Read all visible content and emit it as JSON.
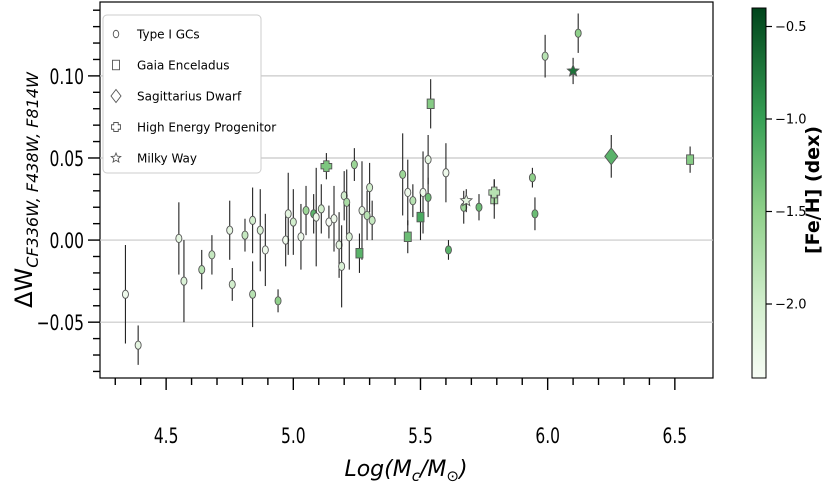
{
  "chart_data": {
    "type": "scatter",
    "xlabel": "Log(M_c/M_⊙)",
    "ylabel": "ΔW_CF336W, F438W, F814W",
    "xlim": [
      4.24,
      6.65
    ],
    "ylim": [
      -0.084,
      0.145
    ],
    "x_ticks": [
      4.5,
      5.0,
      5.5,
      6.0,
      6.5
    ],
    "x_tick_labels": [
      "4.5",
      "5.0",
      "5.5",
      "6.0",
      "6.5"
    ],
    "y_ticks": [
      -0.05,
      0.0,
      0.05,
      0.1
    ],
    "y_tick_labels": [
      "−0.05",
      "0.00",
      "0.05",
      "0.10"
    ],
    "grid": true,
    "legend_position": "top-left",
    "colorbar": {
      "label": "[Fe/H] (dex)",
      "range": [
        -2.4,
        -0.4
      ],
      "ticks": [
        -2.0,
        -1.5,
        -1.0,
        -0.5
      ],
      "tick_labels": [
        "−2.0",
        "−1.5",
        "−1.0",
        "−0.5"
      ],
      "color_low": "#f7fcf5",
      "color_high": "#00441b"
    },
    "series": [
      {
        "name": "Type I GCs",
        "marker": "circle",
        "points": [
          {
            "x": 4.34,
            "y": -0.033,
            "err": 0.03,
            "feh": -2.3
          },
          {
            "x": 4.39,
            "y": -0.064,
            "err": 0.012,
            "feh": -2.2
          },
          {
            "x": 4.55,
            "y": 0.001,
            "err": 0.022,
            "feh": -2.2
          },
          {
            "x": 4.57,
            "y": -0.025,
            "err": 0.025,
            "feh": -2.1
          },
          {
            "x": 4.64,
            "y": -0.018,
            "err": 0.012,
            "feh": -1.8
          },
          {
            "x": 4.68,
            "y": -0.009,
            "err": 0.012,
            "feh": -1.9
          },
          {
            "x": 4.75,
            "y": 0.006,
            "err": 0.018,
            "feh": -2.2
          },
          {
            "x": 4.76,
            "y": -0.027,
            "err": 0.01,
            "feh": -2.0
          },
          {
            "x": 4.81,
            "y": 0.003,
            "err": 0.01,
            "feh": -1.9
          },
          {
            "x": 4.84,
            "y": -0.033,
            "err": 0.02,
            "feh": -1.8
          },
          {
            "x": 4.84,
            "y": 0.012,
            "err": 0.02,
            "feh": -2.0
          },
          {
            "x": 4.87,
            "y": 0.006,
            "err": 0.025,
            "feh": -2.1
          },
          {
            "x": 4.89,
            "y": -0.006,
            "err": 0.022,
            "feh": -2.3
          },
          {
            "x": 4.94,
            "y": -0.037,
            "err": 0.007,
            "feh": -1.5
          },
          {
            "x": 4.97,
            "y": 0.0,
            "err": 0.016,
            "feh": -2.3
          },
          {
            "x": 4.98,
            "y": 0.016,
            "err": 0.025,
            "feh": -2.2
          },
          {
            "x": 5.0,
            "y": 0.011,
            "err": 0.02,
            "feh": -2.0
          },
          {
            "x": 5.03,
            "y": 0.002,
            "err": 0.02,
            "feh": -2.3
          },
          {
            "x": 5.05,
            "y": 0.018,
            "err": 0.015,
            "feh": -1.6
          },
          {
            "x": 5.08,
            "y": 0.016,
            "err": 0.012,
            "feh": -1.2
          },
          {
            "x": 5.09,
            "y": 0.014,
            "err": 0.03,
            "feh": -2.3
          },
          {
            "x": 5.11,
            "y": 0.019,
            "err": 0.015,
            "feh": -2.0
          },
          {
            "x": 5.14,
            "y": 0.011,
            "err": 0.01,
            "feh": -2.4
          },
          {
            "x": 5.16,
            "y": 0.013,
            "err": 0.02,
            "feh": -2.3
          },
          {
            "x": 5.18,
            "y": -0.003,
            "err": 0.02,
            "feh": -2.2
          },
          {
            "x": 5.19,
            "y": -0.016,
            "err": 0.025,
            "feh": -2.1
          },
          {
            "x": 5.2,
            "y": 0.027,
            "err": 0.015,
            "feh": -2.0
          },
          {
            "x": 5.21,
            "y": 0.023,
            "err": 0.02,
            "feh": -1.7
          },
          {
            "x": 5.22,
            "y": 0.002,
            "err": 0.02,
            "feh": -2.1
          },
          {
            "x": 5.24,
            "y": 0.046,
            "err": 0.01,
            "feh": -1.6
          },
          {
            "x": 5.27,
            "y": 0.018,
            "err": 0.03,
            "feh": -2.2
          },
          {
            "x": 5.29,
            "y": 0.015,
            "err": 0.015,
            "feh": -1.8
          },
          {
            "x": 5.3,
            "y": 0.032,
            "err": 0.015,
            "feh": -2.0
          },
          {
            "x": 5.31,
            "y": 0.012,
            "err": 0.012,
            "feh": -1.9
          },
          {
            "x": 5.43,
            "y": 0.04,
            "err": 0.025,
            "feh": -1.6
          },
          {
            "x": 5.45,
            "y": 0.029,
            "err": 0.02,
            "feh": -2.3
          },
          {
            "x": 5.47,
            "y": 0.024,
            "err": 0.01,
            "feh": -1.8
          },
          {
            "x": 5.51,
            "y": 0.029,
            "err": 0.025,
            "feh": -2.3
          },
          {
            "x": 5.53,
            "y": 0.049,
            "err": 0.015,
            "feh": -2.2
          },
          {
            "x": 5.53,
            "y": 0.026,
            "err": 0.012,
            "feh": -1.3
          },
          {
            "x": 5.6,
            "y": 0.041,
            "err": 0.018,
            "feh": -2.3
          },
          {
            "x": 5.61,
            "y": -0.006,
            "err": 0.006,
            "feh": -1.2
          },
          {
            "x": 5.67,
            "y": 0.02,
            "err": 0.01,
            "feh": -1.6
          },
          {
            "x": 5.73,
            "y": 0.02,
            "err": 0.008,
            "feh": -1.3
          },
          {
            "x": 5.94,
            "y": 0.038,
            "err": 0.006,
            "feh": -1.5
          },
          {
            "x": 5.95,
            "y": 0.016,
            "err": 0.01,
            "feh": -1.3
          },
          {
            "x": 5.99,
            "y": 0.112,
            "err": 0.013,
            "feh": -1.8
          },
          {
            "x": 6.12,
            "y": 0.126,
            "err": 0.012,
            "feh": -1.5
          }
        ]
      },
      {
        "name": "Gaia Enceladus",
        "marker": "square",
        "points": [
          {
            "x": 5.26,
            "y": -0.008,
            "err": 0.012,
            "feh": -1.2
          },
          {
            "x": 5.45,
            "y": 0.002,
            "err": 0.01,
            "feh": -1.3
          },
          {
            "x": 5.5,
            "y": 0.014,
            "err": 0.014,
            "feh": -1.1
          },
          {
            "x": 5.54,
            "y": 0.083,
            "err": 0.015,
            "feh": -1.45
          },
          {
            "x": 5.79,
            "y": 0.025,
            "err": 0.012,
            "feh": -1.7
          },
          {
            "x": 6.56,
            "y": 0.049,
            "err": 0.008,
            "feh": -1.45
          }
        ]
      },
      {
        "name": "Sagittarius Dwarf",
        "marker": "diamond",
        "points": [
          {
            "x": 6.25,
            "y": 0.051,
            "err": 0.013,
            "feh": -1.2
          }
        ]
      },
      {
        "name": "High Energy Progenitor",
        "marker": "plus-circle",
        "points": [
          {
            "x": 5.13,
            "y": 0.045,
            "err": 0.008,
            "feh": -1.4
          },
          {
            "x": 5.79,
            "y": 0.029,
            "err": 0.008,
            "feh": -1.8
          }
        ]
      },
      {
        "name": "Milky Way",
        "marker": "star",
        "points": [
          {
            "x": 5.68,
            "y": 0.024,
            "err": 0.007,
            "feh": -2.2
          },
          {
            "x": 6.1,
            "y": 0.103,
            "err": 0.008,
            "feh": -0.7
          }
        ]
      }
    ]
  }
}
